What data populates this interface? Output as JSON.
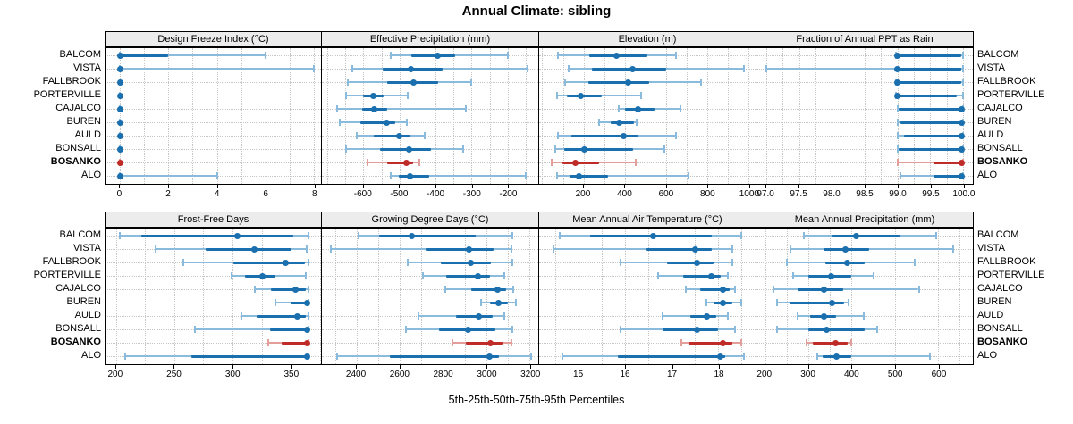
{
  "title": "Annual Climate: sibling",
  "xlabel": "5th-25th-50th-75th-95th Percentiles",
  "percentiles": [
    5,
    25,
    50,
    75,
    95
  ],
  "sites": [
    "BALCOM",
    "VISTA",
    "FALLBROOK",
    "PORTERVILLE",
    "CAJALCO",
    "BUREN",
    "AULD",
    "BONSALL",
    "BOSANKO",
    "ALO"
  ],
  "highlight_site": "BOSANKO",
  "colors": {
    "blue": "#1a6fae",
    "blue_light": "#8abbdc",
    "red": "#bf2b27",
    "red_light": "#e39e9a",
    "gridline": "#c6c6c6",
    "strip_bg": "#ececec",
    "border": "#000000"
  },
  "chart_data": [
    {
      "type": "dot-whisker",
      "panel": "Design Freeze Index (°C)",
      "band": 0,
      "col": 0,
      "xlim": [
        -0.6,
        8.3
      ],
      "ticks": [
        0,
        2,
        4,
        6,
        8
      ],
      "tick_labels": [
        "0",
        "2",
        "4",
        "6",
        "8"
      ],
      "minor_step": 1,
      "rows": {
        "BALCOM": [
          0,
          0,
          0,
          2,
          6
        ],
        "VISTA": [
          0,
          0,
          0,
          0,
          8
        ],
        "FALLBROOK": [
          0,
          0,
          0,
          0,
          0
        ],
        "PORTERVILLE": [
          0,
          0,
          0,
          0,
          0
        ],
        "CAJALCO": [
          0,
          0,
          0,
          0,
          0
        ],
        "BUREN": [
          0,
          0,
          0,
          0,
          0
        ],
        "AULD": [
          0,
          0,
          0,
          0,
          0
        ],
        "BONSALL": [
          0,
          0,
          0,
          0,
          0
        ],
        "BOSANKO": [
          0,
          0,
          0,
          0,
          0
        ],
        "ALO": [
          0,
          0,
          0,
          0,
          4
        ]
      }
    },
    {
      "type": "dot-whisker",
      "panel": "Effective Precipitation (mm)",
      "band": 0,
      "col": 1,
      "xlim": [
        -715,
        -115
      ],
      "ticks": [
        -600,
        -500,
        -400,
        -300,
        -200
      ],
      "tick_labels": [
        "-600",
        "-500",
        "-400",
        "-300",
        "-200"
      ],
      "minor_step": 50,
      "rows": {
        "BALCOM": [
          -523,
          -467,
          -395,
          -346,
          -200
        ],
        "VISTA": [
          -630,
          -546,
          -468,
          -380,
          -145
        ],
        "FALLBROOK": [
          -642,
          -535,
          -462,
          -392,
          -300
        ],
        "PORTERVILLE": [
          -648,
          -600,
          -573,
          -545,
          -478
        ],
        "CAJALCO": [
          -673,
          -604,
          -571,
          -535,
          -315
        ],
        "BUREN": [
          -665,
          -608,
          -536,
          -512,
          -480
        ],
        "AULD": [
          -618,
          -570,
          -500,
          -470,
          -430
        ],
        "BONSALL": [
          -648,
          -554,
          -473,
          -412,
          -323
        ],
        "BOSANKO": [
          -589,
          -535,
          -481,
          -463,
          -444
        ],
        "ALO": [
          -523,
          -502,
          -472,
          -417,
          -150
        ]
      }
    },
    {
      "type": "dot-whisker",
      "panel": "Elevation (m)",
      "band": 0,
      "col": 2,
      "xlim": [
        -15,
        1035
      ],
      "ticks": [
        200,
        400,
        600,
        800,
        1000
      ],
      "tick_labels": [
        "200",
        "400",
        "600",
        "800",
        "1000"
      ],
      "minor_step": 100,
      "rows": {
        "BALCOM": [
          75,
          230,
          360,
          510,
          650
        ],
        "VISTA": [
          130,
          240,
          440,
          600,
          980
        ],
        "FALLBROOK": [
          110,
          225,
          415,
          520,
          770
        ],
        "PORTERVILLE": [
          70,
          120,
          185,
          290,
          480
        ],
        "CAJALCO": [
          370,
          400,
          465,
          545,
          670
        ],
        "BUREN": [
          277,
          330,
          374,
          445,
          460
        ],
        "AULD": [
          75,
          140,
          395,
          465,
          650
        ],
        "BONSALL": [
          63,
          106,
          206,
          441,
          592
        ],
        "BOSANKO": [
          46,
          99,
          160,
          277,
          453
        ],
        "ALO": [
          70,
          131,
          177,
          320,
          710
        ]
      }
    },
    {
      "type": "dot-whisker",
      "panel": "Fraction of Annual PPT as Rain",
      "band": 0,
      "col": 3,
      "xlim": [
        96.85,
        100.15
      ],
      "ticks": [
        97.0,
        97.5,
        98.0,
        98.5,
        99.0,
        99.5,
        100.0
      ],
      "tick_labels": [
        "97.0",
        "97.5",
        "98.0",
        "98.5",
        "99.0",
        "99.5",
        "100.0"
      ],
      "minor_step": 0.25,
      "rows": {
        "BALCOM": [
          98.98,
          99.0,
          99.0,
          99.97,
          100.0
        ],
        "VISTA": [
          97.0,
          99.0,
          99.0,
          99.97,
          100.0
        ],
        "FALLBROOK": [
          98.98,
          99.0,
          99.0,
          99.97,
          100.0
        ],
        "PORTERVILLE": [
          98.98,
          99.0,
          99.0,
          99.9,
          100.0
        ],
        "CAJALCO": [
          99.0,
          99.02,
          99.98,
          100.0,
          100.0
        ],
        "BUREN": [
          99.0,
          99.05,
          99.98,
          100.0,
          100.0
        ],
        "AULD": [
          99.0,
          99.1,
          99.98,
          100.0,
          100.0
        ],
        "BONSALL": [
          99.0,
          99.02,
          99.98,
          100.0,
          100.0
        ],
        "BOSANKO": [
          99.0,
          99.55,
          99.98,
          100.0,
          100.0
        ],
        "ALO": [
          99.05,
          99.55,
          99.98,
          100.0,
          100.0
        ]
      }
    },
    {
      "type": "dot-whisker",
      "panel": "Frost-Free Days",
      "band": 1,
      "col": 0,
      "xlim": [
        191,
        376
      ],
      "ticks": [
        200,
        250,
        300,
        350
      ],
      "tick_labels": [
        "200",
        "250",
        "300",
        "350"
      ],
      "minor_step": 25,
      "rows": {
        "BALCOM": [
          203,
          222,
          304,
          352,
          365
        ],
        "VISTA": [
          234,
          277,
          319,
          351,
          364
        ],
        "FALLBROOK": [
          258,
          301,
          346,
          362,
          365
        ],
        "PORTERVILLE": [
          299,
          311,
          326,
          337,
          363
        ],
        "CAJALCO": [
          319,
          333,
          354,
          363,
          365
        ],
        "BUREN": [
          337,
          350,
          364,
          365,
          365
        ],
        "AULD": [
          308,
          321,
          356,
          363,
          365
        ],
        "BONSALL": [
          268,
          332,
          364,
          365,
          365
        ],
        "BOSANKO": [
          331,
          342,
          364,
          365,
          365
        ],
        "ALO": [
          208,
          265,
          364,
          365,
          365
        ]
      }
    },
    {
      "type": "dot-whisker",
      "panel": "Growing Degree Days (°C)",
      "band": 1,
      "col": 1,
      "xlim": [
        2240,
        3240
      ],
      "ticks": [
        2400,
        2600,
        2800,
        3000,
        3200
      ],
      "tick_labels": [
        "2400",
        "2600",
        "2800",
        "3000",
        "3200"
      ],
      "minor_step": 100,
      "rows": {
        "BALCOM": [
          2410,
          2505,
          2655,
          2950,
          3120
        ],
        "VISTA": [
          2280,
          2720,
          2918,
          3035,
          3115
        ],
        "FALLBROOK": [
          2635,
          2790,
          2930,
          3020,
          3120
        ],
        "PORTERVILLE": [
          2705,
          2815,
          2960,
          3015,
          3085
        ],
        "CAJALCO": [
          2810,
          2930,
          3050,
          3090,
          3125
        ],
        "BUREN": [
          2975,
          3015,
          3055,
          3100,
          3135
        ],
        "AULD": [
          2685,
          2860,
          2965,
          3030,
          3085
        ],
        "BONSALL": [
          2630,
          2780,
          2915,
          3040,
          3120
        ],
        "BOSANKO": [
          2845,
          2905,
          3020,
          3075,
          3115
        ],
        "ALO": [
          2310,
          2555,
          3015,
          3060,
          3205
        ]
      }
    },
    {
      "type": "dot-whisker",
      "panel": "Mean Annual Air Temperature (°C)",
      "band": 1,
      "col": 2,
      "xlim": [
        14.15,
        18.8
      ],
      "ticks": [
        15,
        16,
        17,
        18
      ],
      "tick_labels": [
        "15",
        "16",
        "17",
        "18"
      ],
      "minor_step": 0.5,
      "rows": {
        "BALCOM": [
          14.6,
          15.25,
          16.6,
          17.85,
          18.5
        ],
        "VISTA": [
          14.45,
          16.45,
          17.5,
          17.85,
          18.3
        ],
        "FALLBROOK": [
          15.9,
          16.9,
          17.55,
          17.9,
          18.3
        ],
        "PORTERVILLE": [
          16.7,
          17.25,
          17.85,
          18.05,
          18.2
        ],
        "CAJALCO": [
          17.3,
          17.6,
          18.1,
          18.25,
          18.35
        ],
        "BUREN": [
          17.75,
          17.9,
          18.1,
          18.3,
          18.5
        ],
        "AULD": [
          16.8,
          17.4,
          17.75,
          17.95,
          18.2
        ],
        "BONSALL": [
          15.9,
          16.8,
          17.55,
          18.0,
          18.35
        ],
        "BOSANKO": [
          17.2,
          17.35,
          18.1,
          18.3,
          18.5
        ],
        "ALO": [
          14.65,
          15.85,
          18.05,
          18.15,
          18.55
        ]
      }
    },
    {
      "type": "dot-whisker",
      "panel": "Mean Annual Precipitation (mm)",
      "band": 1,
      "col": 3,
      "xlim": [
        180,
        680
      ],
      "ticks": [
        200,
        300,
        400,
        500,
        600
      ],
      "tick_labels": [
        "200",
        "300",
        "400",
        "500",
        "600"
      ],
      "minor_step": 50,
      "rows": {
        "BALCOM": [
          290,
          355,
          410,
          510,
          595
        ],
        "VISTA": [
          258,
          335,
          385,
          440,
          635
        ],
        "FALLBROOK": [
          250,
          340,
          390,
          430,
          545
        ],
        "PORTERVILLE": [
          265,
          300,
          352,
          400,
          450
        ],
        "CAJALCO": [
          220,
          275,
          335,
          380,
          555
        ],
        "BUREN": [
          227,
          257,
          355,
          382,
          392
        ],
        "AULD": [
          275,
          303,
          335,
          363,
          428
        ],
        "BONSALL": [
          228,
          300,
          342,
          430,
          458
        ],
        "BOSANKO": [
          295,
          310,
          362,
          390,
          400
        ],
        "ALO": [
          320,
          332,
          365,
          400,
          580
        ]
      }
    }
  ]
}
